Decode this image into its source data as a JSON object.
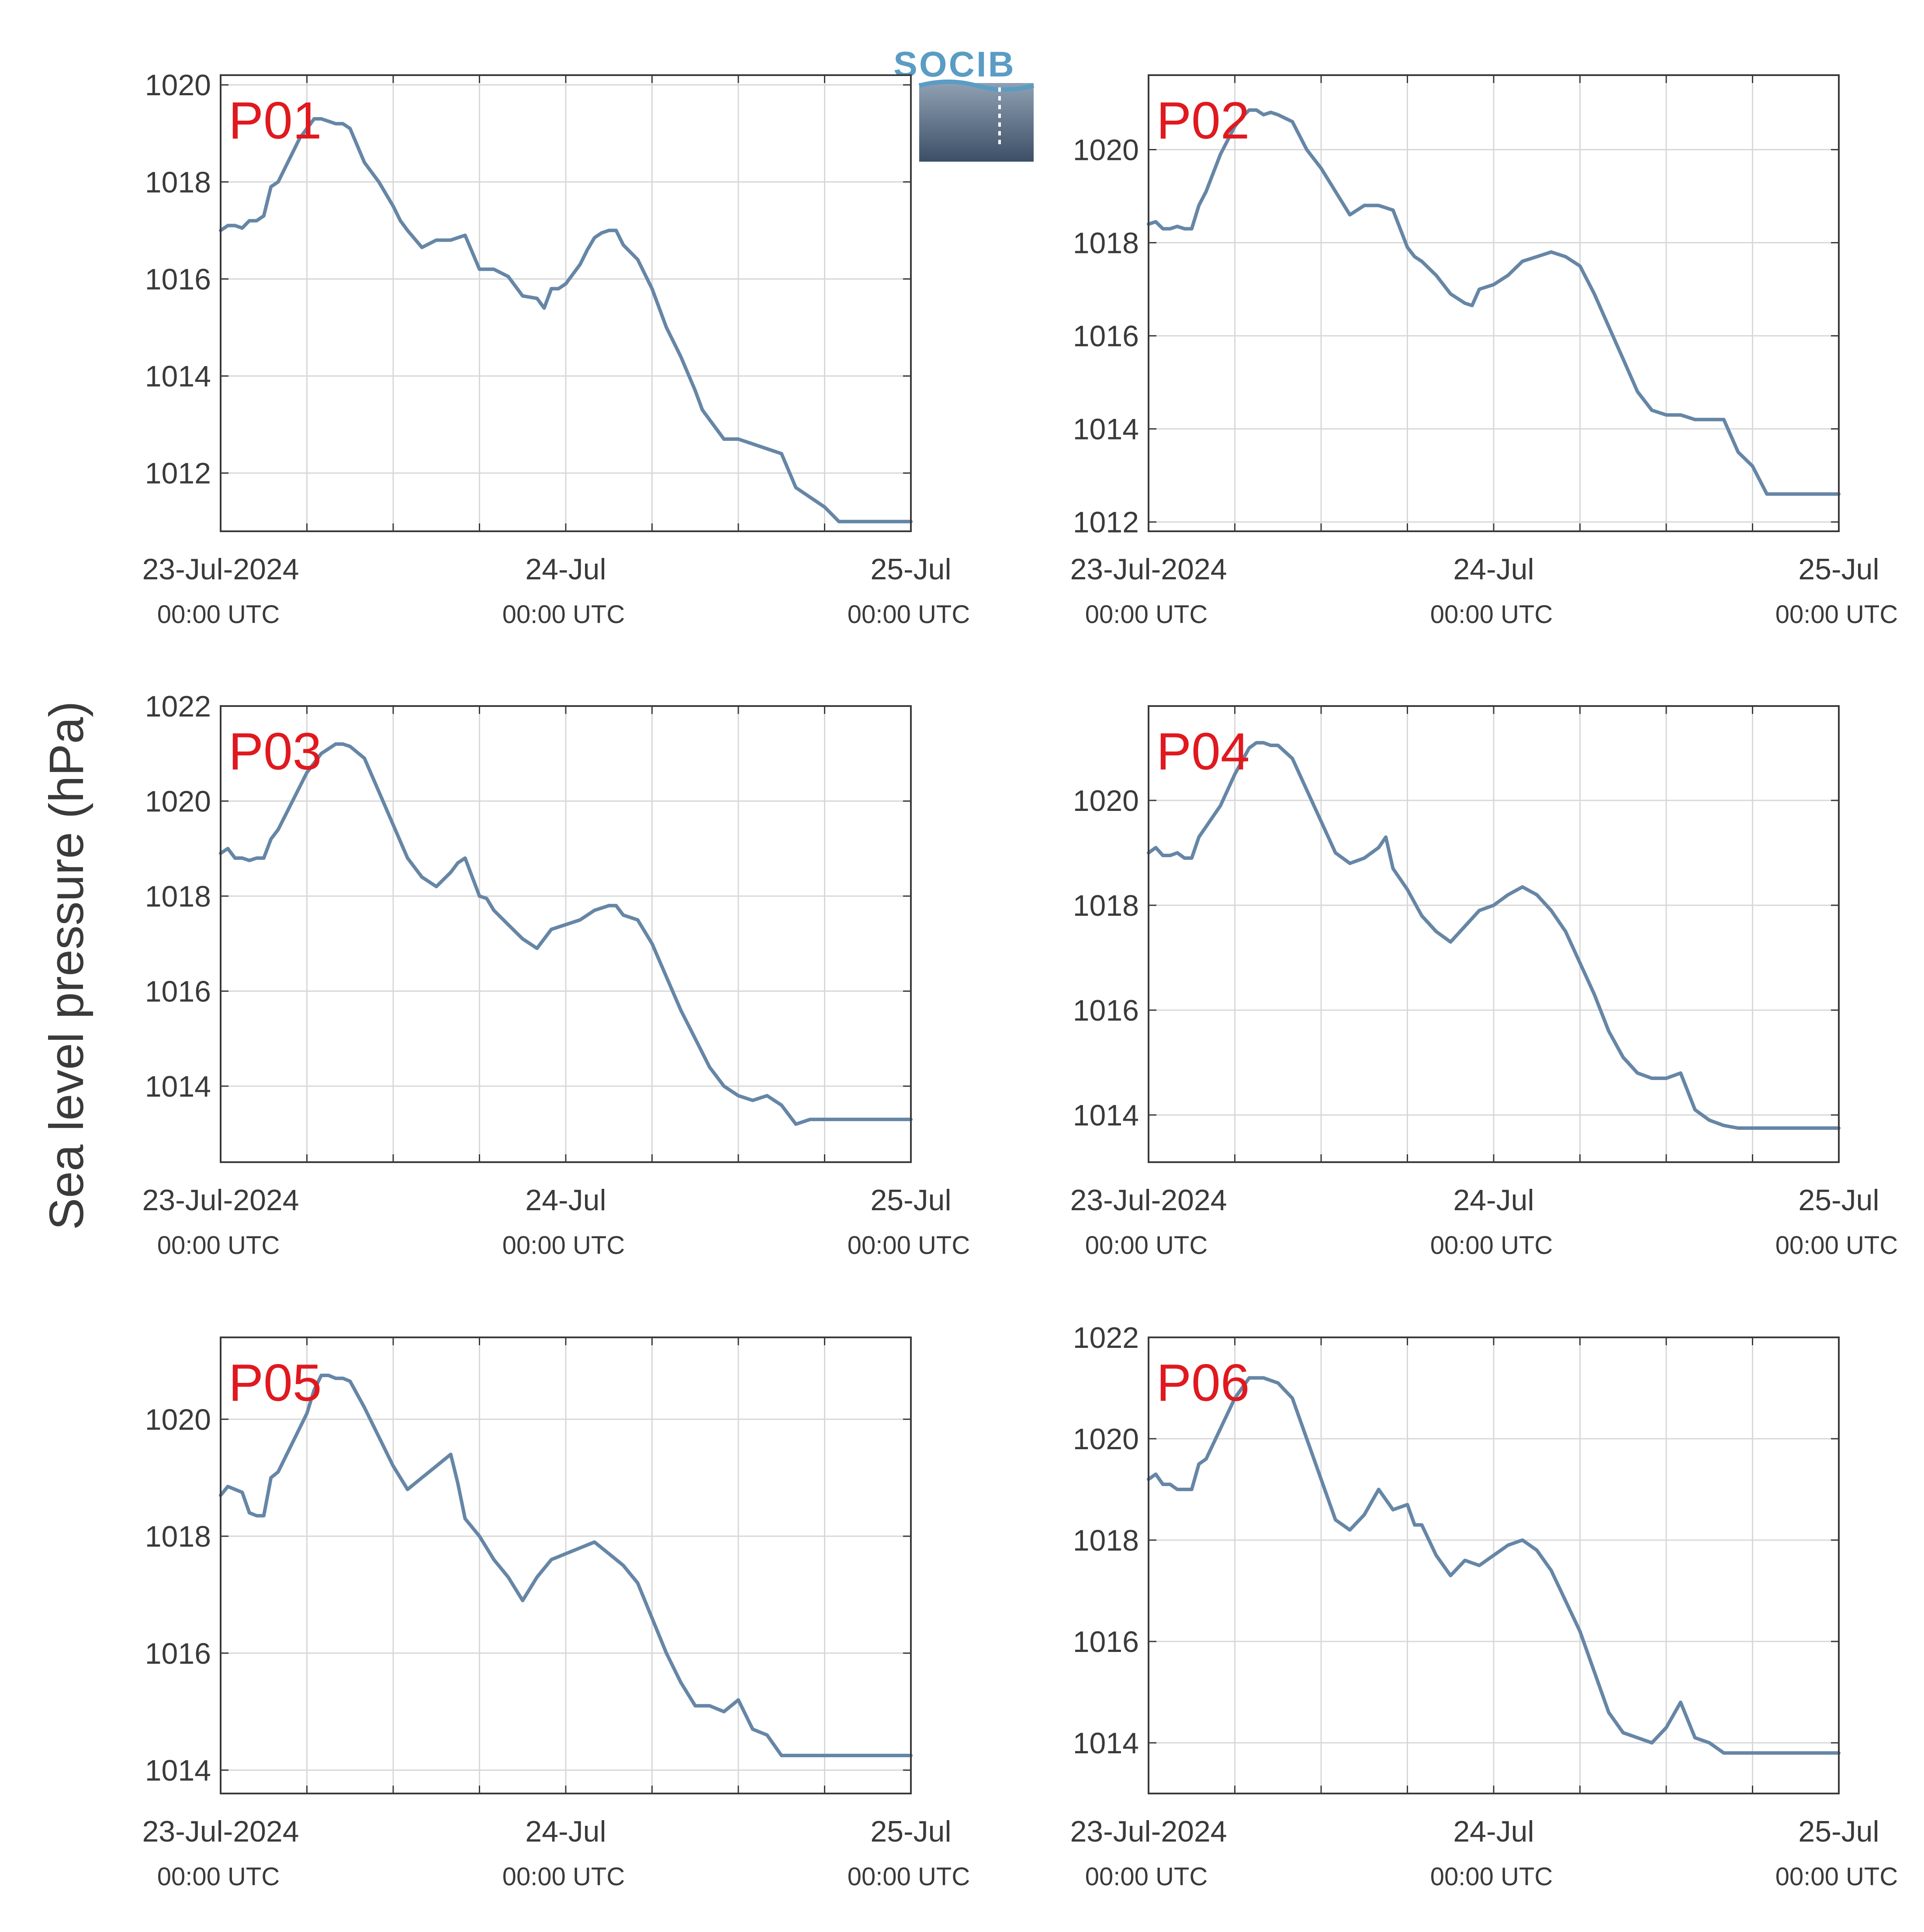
{
  "logo": {
    "text": "SOCIB",
    "top_color": "#8fa0b2",
    "bottom_color": "#3c4f66",
    "text_color": "#5a9cc4"
  },
  "ylabel": "Sea level pressure (hPa)",
  "colors": {
    "line": "#6686a6",
    "label": "#e0191f",
    "grid": "#d8d8d8",
    "axis": "#3a3a3a"
  },
  "chart_data": [
    {
      "type": "line",
      "label": "P01",
      "x_unit": "hours since 23-Jul-2024 00:00 UTC",
      "xlim": [
        0,
        48
      ],
      "ylim": [
        1010.8,
        1020.2
      ],
      "yticks": [
        1012,
        1014,
        1016,
        1018,
        1020
      ],
      "x_ticks": [
        {
          "x": 0,
          "label": "23-Jul-2024",
          "sub": "00:00 UTC"
        },
        {
          "x": 24,
          "label": "24-Jul",
          "sub": "00:00 UTC"
        },
        {
          "x": 48,
          "label": "25-Jul",
          "sub": "00:00 UTC"
        }
      ],
      "x": [
        0,
        0.5,
        1,
        1.5,
        2,
        2.5,
        3,
        3.5,
        4,
        4.5,
        5,
        5.5,
        6,
        6.5,
        7,
        7.5,
        8,
        8.5,
        9,
        10,
        11,
        12,
        12.5,
        13,
        14,
        15,
        16,
        17,
        18,
        19,
        20,
        20.5,
        21,
        22,
        22.5,
        23,
        23.5,
        24,
        25,
        25.5,
        26,
        26.5,
        27,
        27.5,
        28,
        29,
        30,
        31,
        31.5,
        32,
        33,
        33.5,
        34,
        34.5,
        35,
        36,
        37,
        38,
        39,
        40,
        41,
        42,
        43,
        44,
        45,
        46,
        46.5,
        47,
        48
      ],
      "y": [
        1017.0,
        1017.1,
        1017.1,
        1017.05,
        1017.2,
        1017.2,
        1017.3,
        1017.9,
        1018.0,
        1018.3,
        1018.6,
        1018.9,
        1019.1,
        1019.3,
        1019.3,
        1019.25,
        1019.2,
        1019.2,
        1019.1,
        1018.4,
        1018.0,
        1017.5,
        1017.2,
        1017.0,
        1016.65,
        1016.8,
        1016.8,
        1016.9,
        1016.2,
        1016.2,
        1016.05,
        1015.85,
        1015.65,
        1015.6,
        1015.4,
        1015.8,
        1015.8,
        1015.9,
        1016.3,
        1016.6,
        1016.85,
        1016.95,
        1017.0,
        1017.0,
        1016.7,
        1016.4,
        1015.8,
        1015.0,
        1014.7,
        1014.4,
        1013.7,
        1013.3,
        1013.1,
        1012.9,
        1012.7,
        1012.7,
        1012.6,
        1012.5,
        1012.4,
        1011.7,
        1011.5,
        1011.3,
        1011.0,
        1011.0,
        1011.0,
        1011.0,
        1011.0,
        1011.0,
        1011.0
      ]
    },
    {
      "type": "line",
      "label": "P02",
      "x_unit": "hours since 23-Jul-2024 00:00 UTC",
      "xlim": [
        0,
        48
      ],
      "ylim": [
        1011.8,
        1021.6
      ],
      "yticks": [
        1012,
        1014,
        1016,
        1018,
        1020
      ],
      "x_ticks": [
        {
          "x": 0,
          "label": "23-Jul-2024",
          "sub": "00:00 UTC"
        },
        {
          "x": 24,
          "label": "24-Jul",
          "sub": "00:00 UTC"
        },
        {
          "x": 48,
          "label": "25-Jul",
          "sub": "00:00 UTC"
        }
      ],
      "x": [
        0,
        0.5,
        1,
        1.5,
        2,
        2.5,
        3,
        3.5,
        4,
        5,
        6,
        6.5,
        7,
        7.5,
        8,
        8.5,
        9,
        10,
        11,
        12,
        13,
        14,
        15,
        16,
        17,
        18,
        18.5,
        19,
        20,
        21,
        21.5,
        22,
        22.5,
        23,
        24,
        25,
        26,
        27,
        28,
        29,
        30,
        31,
        32,
        33,
        34,
        35,
        36,
        37,
        38,
        39,
        40,
        41,
        42,
        43,
        44,
        45,
        46,
        46.5,
        47,
        48
      ],
      "y": [
        1018.4,
        1018.45,
        1018.3,
        1018.3,
        1018.35,
        1018.3,
        1018.3,
        1018.8,
        1019.1,
        1019.9,
        1020.5,
        1020.7,
        1020.85,
        1020.85,
        1020.75,
        1020.8,
        1020.75,
        1020.6,
        1020.0,
        1019.6,
        1019.1,
        1018.6,
        1018.8,
        1018.8,
        1018.7,
        1017.9,
        1017.7,
        1017.6,
        1017.3,
        1016.9,
        1016.8,
        1016.7,
        1016.65,
        1017.0,
        1017.1,
        1017.3,
        1017.6,
        1017.7,
        1017.8,
        1017.7,
        1017.5,
        1016.9,
        1016.2,
        1015.5,
        1014.8,
        1014.4,
        1014.3,
        1014.3,
        1014.2,
        1014.2,
        1014.2,
        1013.5,
        1013.2,
        1012.6,
        1012.6,
        1012.6,
        1012.6,
        1012.6,
        1012.6,
        1012.6
      ]
    },
    {
      "type": "line",
      "label": "P03",
      "x_unit": "hours since 23-Jul-2024 00:00 UTC",
      "xlim": [
        0,
        48
      ],
      "ylim": [
        1012.4,
        1022.0
      ],
      "yticks": [
        1014,
        1016,
        1018,
        1020,
        1022
      ],
      "x_ticks": [
        {
          "x": 0,
          "label": "23-Jul-2024",
          "sub": "00:00 UTC"
        },
        {
          "x": 24,
          "label": "24-Jul",
          "sub": "00:00 UTC"
        },
        {
          "x": 48,
          "label": "25-Jul",
          "sub": "00:00 UTC"
        }
      ],
      "x": [
        0,
        0.5,
        1,
        1.5,
        2,
        2.5,
        3,
        3.5,
        4,
        5,
        6,
        7,
        7.5,
        8,
        8.5,
        9,
        10,
        11,
        12,
        13,
        14,
        15,
        16,
        16.5,
        17,
        18,
        18.5,
        19,
        20,
        21,
        22,
        23,
        24,
        25,
        26,
        27,
        27.5,
        28,
        29,
        30,
        31,
        32,
        33,
        34,
        35,
        36,
        37,
        38,
        39,
        40,
        41,
        41.5,
        42,
        43,
        44,
        45,
        46,
        46.5,
        47,
        48
      ],
      "y": [
        1018.9,
        1019.0,
        1018.8,
        1018.8,
        1018.75,
        1018.8,
        1018.8,
        1019.2,
        1019.4,
        1020.0,
        1020.6,
        1021.0,
        1021.1,
        1021.2,
        1021.2,
        1021.15,
        1020.9,
        1020.2,
        1019.5,
        1018.8,
        1018.4,
        1018.2,
        1018.5,
        1018.7,
        1018.8,
        1018.0,
        1017.95,
        1017.7,
        1017.4,
        1017.1,
        1016.9,
        1017.3,
        1017.4,
        1017.5,
        1017.7,
        1017.8,
        1017.8,
        1017.6,
        1017.5,
        1017.0,
        1016.3,
        1015.6,
        1015.0,
        1014.4,
        1014.0,
        1013.8,
        1013.7,
        1013.8,
        1013.6,
        1013.2,
        1013.3,
        1013.3,
        1013.3,
        1013.3,
        1013.3,
        1013.3,
        1013.3,
        1013.3,
        1013.3,
        1013.3
      ]
    },
    {
      "type": "line",
      "label": "P04",
      "x_unit": "hours since 23-Jul-2024 00:00 UTC",
      "xlim": [
        0,
        48
      ],
      "ylim": [
        1013.1,
        1021.8
      ],
      "yticks": [
        1014,
        1016,
        1018,
        1020
      ],
      "x_ticks": [
        {
          "x": 0,
          "label": "23-Jul-2024",
          "sub": "00:00 UTC"
        },
        {
          "x": 24,
          "label": "24-Jul",
          "sub": "00:00 UTC"
        },
        {
          "x": 48,
          "label": "25-Jul",
          "sub": "00:00 UTC"
        }
      ],
      "x": [
        0,
        0.5,
        1,
        1.5,
        2,
        2.5,
        3,
        3.5,
        4,
        5,
        6,
        7,
        7.5,
        8,
        8.5,
        9,
        10,
        11,
        12,
        13,
        14,
        15,
        16,
        16.5,
        17,
        18,
        19,
        20,
        21,
        22,
        23,
        24,
        25,
        26,
        27,
        28,
        29,
        30,
        31,
        32,
        33,
        34,
        35,
        36,
        37,
        38,
        39,
        40,
        41,
        41.5,
        42,
        43,
        44,
        45,
        46,
        46.5,
        47,
        48
      ],
      "y": [
        1019.0,
        1019.1,
        1018.95,
        1018.95,
        1019.0,
        1018.9,
        1018.9,
        1019.3,
        1019.5,
        1019.9,
        1020.5,
        1021.0,
        1021.1,
        1021.1,
        1021.05,
        1021.05,
        1020.8,
        1020.2,
        1019.6,
        1019.0,
        1018.8,
        1018.9,
        1019.1,
        1019.3,
        1018.7,
        1018.3,
        1017.8,
        1017.5,
        1017.3,
        1017.6,
        1017.9,
        1018.0,
        1018.2,
        1018.35,
        1018.2,
        1017.9,
        1017.5,
        1016.9,
        1016.3,
        1015.6,
        1015.1,
        1014.8,
        1014.7,
        1014.7,
        1014.8,
        1014.1,
        1013.9,
        1013.8,
        1013.75,
        1013.75,
        1013.75,
        1013.75,
        1013.75,
        1013.75,
        1013.75,
        1013.75,
        1013.75,
        1013.75
      ]
    },
    {
      "type": "line",
      "label": "P05",
      "x_unit": "hours since 23-Jul-2024 00:00 UTC",
      "xlim": [
        0,
        48
      ],
      "ylim": [
        1013.6,
        1021.4
      ],
      "yticks": [
        1014,
        1016,
        1018,
        1020
      ],
      "x_ticks": [
        {
          "x": 0,
          "label": "23-Jul-2024",
          "sub": "00:00 UTC"
        },
        {
          "x": 24,
          "label": "24-Jul",
          "sub": "00:00 UTC"
        },
        {
          "x": 48,
          "label": "25-Jul",
          "sub": "00:00 UTC"
        }
      ],
      "x": [
        0,
        0.5,
        1,
        1.5,
        2,
        2.5,
        3,
        3.5,
        4,
        5,
        6,
        6.5,
        7,
        7.5,
        8,
        8.5,
        9,
        10,
        11,
        12,
        13,
        14,
        15,
        16,
        16.5,
        17,
        18,
        19,
        20,
        21,
        22,
        23,
        24,
        25,
        26,
        27,
        28,
        29,
        30,
        31,
        32,
        33,
        34,
        35,
        36,
        37,
        38,
        39,
        40,
        41,
        42,
        43,
        44,
        45,
        46,
        47,
        48
      ],
      "y": [
        1018.7,
        1018.85,
        1018.8,
        1018.75,
        1018.4,
        1018.35,
        1018.35,
        1019.0,
        1019.1,
        1019.6,
        1020.1,
        1020.5,
        1020.75,
        1020.75,
        1020.7,
        1020.7,
        1020.65,
        1020.2,
        1019.7,
        1019.2,
        1018.8,
        1019.0,
        1019.2,
        1019.4,
        1018.9,
        1018.3,
        1018.0,
        1017.6,
        1017.3,
        1016.9,
        1017.3,
        1017.6,
        1017.7,
        1017.8,
        1017.9,
        1017.7,
        1017.5,
        1017.2,
        1016.6,
        1016.0,
        1015.5,
        1015.1,
        1015.1,
        1015.0,
        1015.2,
        1014.7,
        1014.6,
        1014.25,
        1014.25,
        1014.25,
        1014.25,
        1014.25,
        1014.25,
        1014.25,
        1014.25,
        1014.25,
        1014.25
      ]
    },
    {
      "type": "line",
      "label": "P06",
      "x_unit": "hours since 23-Jul-2024 00:00 UTC",
      "xlim": [
        0,
        48
      ],
      "ylim": [
        1013.0,
        1022.0
      ],
      "yticks": [
        1014,
        1016,
        1018,
        1020,
        1022
      ],
      "x_ticks": [
        {
          "x": 0,
          "label": "23-Jul-2024",
          "sub": "00:00 UTC"
        },
        {
          "x": 24,
          "label": "24-Jul",
          "sub": "00:00 UTC"
        },
        {
          "x": 48,
          "label": "25-Jul",
          "sub": "00:00 UTC"
        }
      ],
      "x": [
        0,
        0.5,
        1,
        1.5,
        2,
        2.5,
        3,
        3.5,
        4,
        5,
        6,
        7,
        7.5,
        8,
        8.5,
        9,
        10,
        11,
        12,
        13,
        14,
        15,
        16,
        17,
        18,
        18.5,
        19,
        20,
        21,
        22,
        23,
        24,
        25,
        26,
        27,
        28,
        29,
        30,
        31,
        32,
        33,
        34,
        35,
        36,
        37,
        38,
        39,
        40,
        41,
        42,
        43,
        44,
        45,
        46,
        47,
        48
      ],
      "y": [
        1019.2,
        1019.3,
        1019.1,
        1019.1,
        1019.0,
        1019.0,
        1019.0,
        1019.5,
        1019.6,
        1020.2,
        1020.8,
        1021.2,
        1021.2,
        1021.2,
        1021.15,
        1021.1,
        1020.8,
        1020.0,
        1019.2,
        1018.4,
        1018.2,
        1018.5,
        1019.0,
        1018.6,
        1018.7,
        1018.3,
        1018.3,
        1017.7,
        1017.3,
        1017.6,
        1017.5,
        1017.7,
        1017.9,
        1018.0,
        1017.8,
        1017.4,
        1016.8,
        1016.2,
        1015.4,
        1014.6,
        1014.2,
        1014.1,
        1014.0,
        1014.3,
        1014.8,
        1014.1,
        1014.0,
        1013.8,
        1013.8,
        1013.8,
        1013.8,
        1013.8,
        1013.8,
        1013.8,
        1013.8,
        1013.8
      ]
    }
  ]
}
